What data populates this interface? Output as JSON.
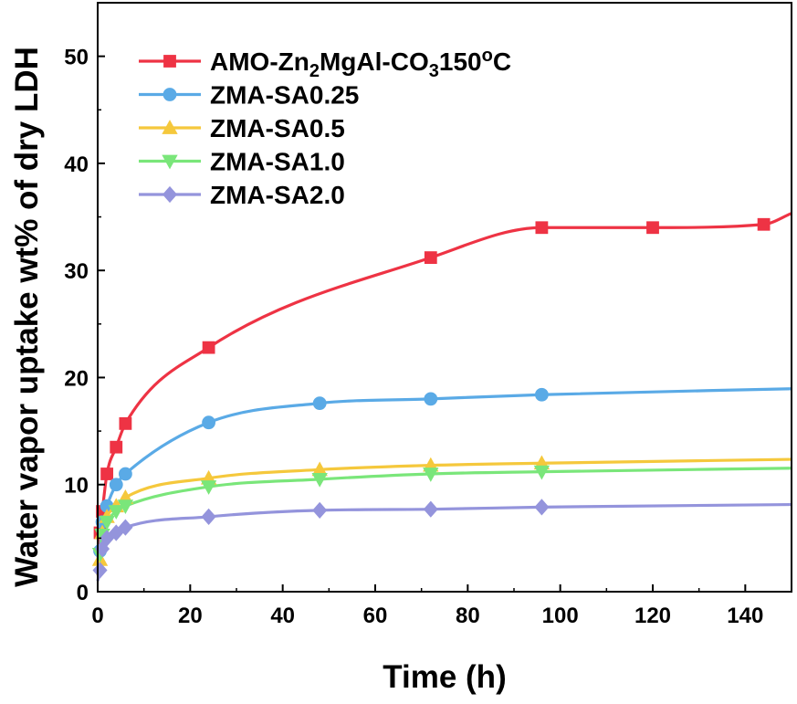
{
  "chart_data": {
    "type": "line",
    "title": "",
    "xlabel": "Time (h)",
    "ylabel": "Water vapor uptake wt% of dry LDH",
    "xlim": [
      0,
      150
    ],
    "ylim": [
      0,
      55
    ],
    "xticks": [
      0,
      20,
      40,
      60,
      80,
      100,
      120,
      140
    ],
    "yticks": [
      0,
      10,
      20,
      30,
      40,
      50
    ],
    "grid": false,
    "legend_position": "top-left",
    "series": [
      {
        "name": "AMO-Zn2MgAl-CO3150°C",
        "legend_parts": {
          "t1": "AMO-Zn",
          "s1": "2",
          "t2": "MgAl-CO",
          "s2": "3",
          "t3": "150",
          "sup": "o",
          "t4": "C"
        },
        "color": "#ee3344",
        "marker": "square",
        "x": [
          0.5,
          1,
          2,
          4,
          6,
          24,
          72,
          96,
          120,
          144
        ],
        "y": [
          5.5,
          7.5,
          11.0,
          13.5,
          15.7,
          22.8,
          31.2,
          34.0,
          34.0,
          34.3
        ]
      },
      {
        "name": "ZMA-SA0.25",
        "color": "#5aaae6",
        "marker": "circle",
        "x": [
          0.5,
          1,
          2,
          4,
          6,
          24,
          48,
          72,
          96
        ],
        "y": [
          3.8,
          6.5,
          8.0,
          10.0,
          11.0,
          15.8,
          17.6,
          18.0,
          18.4
        ]
      },
      {
        "name": "ZMA-SA0.5",
        "color": "#f5c83c",
        "marker": "triangle-up",
        "x": [
          0.5,
          1,
          2,
          4,
          6,
          24,
          48,
          72,
          96
        ],
        "y": [
          3.0,
          5.5,
          7.0,
          8.0,
          8.8,
          10.6,
          11.4,
          11.8,
          12.0
        ]
      },
      {
        "name": "ZMA-SA1.0",
        "color": "#7ae67a",
        "marker": "triangle-down",
        "x": [
          0.5,
          1,
          2,
          4,
          6,
          24,
          48,
          72,
          96
        ],
        "y": [
          3.5,
          5.3,
          6.5,
          7.5,
          8.0,
          9.8,
          10.5,
          11.0,
          11.2
        ]
      },
      {
        "name": "ZMA-SA2.0",
        "color": "#9494dc",
        "marker": "diamond",
        "x": [
          0.5,
          1,
          2,
          4,
          6,
          24,
          48,
          72,
          96
        ],
        "y": [
          2.0,
          4.0,
          5.0,
          5.5,
          6.0,
          7.0,
          7.6,
          7.7,
          7.9
        ]
      }
    ]
  }
}
